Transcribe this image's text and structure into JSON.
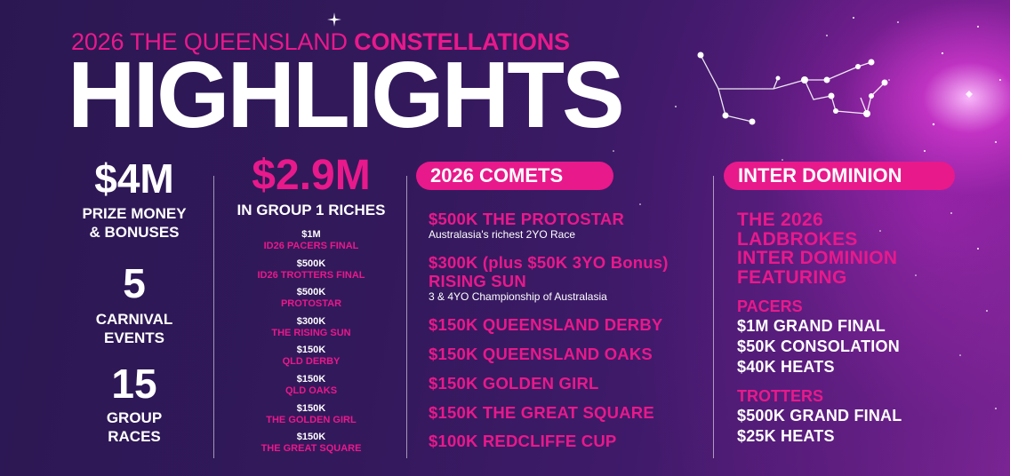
{
  "header": {
    "subtitle_prefix": "2026 THE QUEENSLAND ",
    "subtitle_bold": "CONSTELLATIONS",
    "title": "HIGHLIGHTS"
  },
  "stats": [
    {
      "value": "$4M",
      "label_1": "PRIZE MONEY",
      "label_2": "& BONUSES"
    },
    {
      "value": "5",
      "label_1": "CARNIVAL",
      "label_2": "EVENTS"
    },
    {
      "value": "15",
      "label_1": "GROUP",
      "label_2": "RACES"
    }
  ],
  "group1": {
    "total": "$2.9M",
    "caption": "IN GROUP 1 RICHES",
    "items": [
      {
        "amount": "$1M",
        "name": "ID26 PACERS FINAL"
      },
      {
        "amount": "$500K",
        "name": "ID26 TROTTERS FINAL"
      },
      {
        "amount": "$500K",
        "name": "PROTOSTAR"
      },
      {
        "amount": "$300K",
        "name": "THE RISING SUN"
      },
      {
        "amount": "$150K",
        "name": "QLD DERBY"
      },
      {
        "amount": "$150K",
        "name": "QLD OAKS"
      },
      {
        "amount": "$150K",
        "name": "THE GOLDEN GIRL"
      },
      {
        "amount": "$150K",
        "name": "THE GREAT SQUARE"
      }
    ]
  },
  "comets": {
    "heading": "2026 COMETS",
    "items": [
      {
        "title": "$500K THE PROTOSTAR",
        "desc": "Australasia's richest 2YO Race"
      },
      {
        "title": "$300K (plus $50K 3YO Bonus)",
        "title_2": "RISING SUN",
        "desc": "3 & 4YO Championship of Australasia"
      },
      {
        "title": "$150K QUEENSLAND DERBY"
      },
      {
        "title": "$150K QUEENSLAND OAKS"
      },
      {
        "title": "$150K GOLDEN GIRL"
      },
      {
        "title": "$150K THE GREAT SQUARE"
      },
      {
        "title": "$100K REDCLIFFE CUP"
      }
    ]
  },
  "inter_dominion": {
    "heading": "INTER DOMINION",
    "feature": [
      "THE 2026",
      "LADBROKES",
      "INTER DOMINION",
      "FEATURING"
    ],
    "pacers_heading": "PACERS",
    "pacers": [
      "$1M GRAND FINAL",
      "$50K CONSOLATION",
      "$40K HEATS"
    ],
    "trotters_heading": "TROTTERS",
    "trotters": [
      "$500K GRAND FINAL",
      "$25K HEATS"
    ]
  },
  "colors": {
    "accent": "#e8198b",
    "background": "#2b1852",
    "text": "#ffffff"
  },
  "icons": [
    "constellation-icon",
    "sparkle-icon"
  ]
}
